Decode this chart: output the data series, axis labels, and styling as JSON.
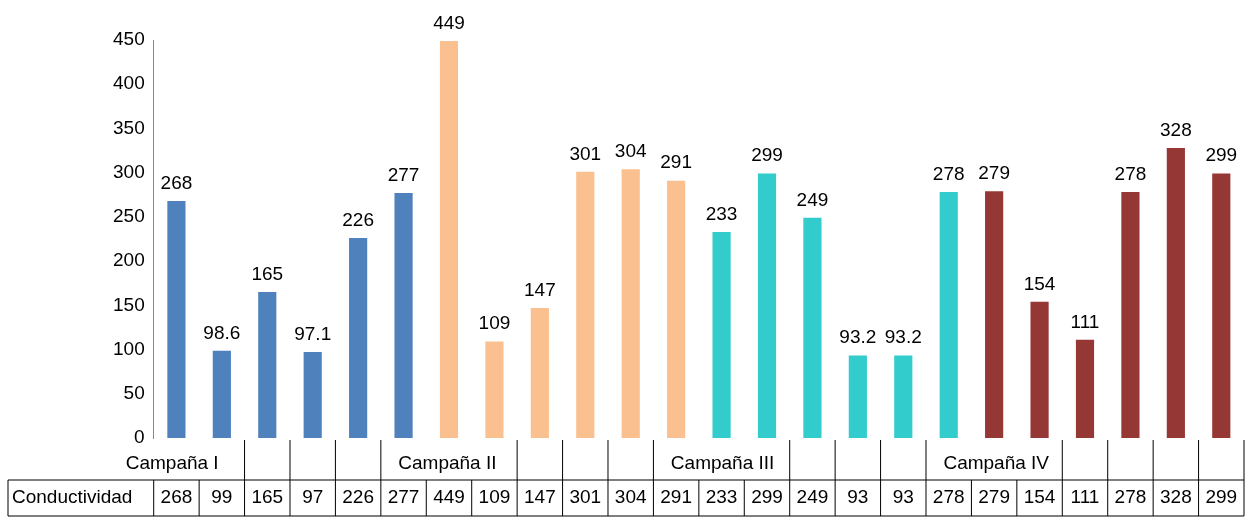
{
  "chart_data": {
    "type": "bar",
    "categories": [
      "Campaña I",
      null,
      null,
      null,
      null,
      null,
      "Campaña II",
      null,
      null,
      null,
      null,
      null,
      "Campaña III",
      null,
      null,
      null,
      null,
      null,
      "Campaña IV",
      null,
      null,
      null,
      null,
      null
    ],
    "series": [
      {
        "name": "Conductividad",
        "colors": [
          "#4f81bd",
          "#4f81bd",
          "#4f81bd",
          "#4f81bd",
          "#4f81bd",
          "#4f81bd",
          "#fac090",
          "#fac090",
          "#fac090",
          "#fac090",
          "#fac090",
          "#fac090",
          "#33cccc",
          "#33cccc",
          "#33cccc",
          "#33cccc",
          "#33cccc",
          "#33cccc",
          "#953735",
          "#953735",
          "#953735",
          "#953735",
          "#953735",
          "#953735"
        ],
        "values": [
          268,
          98.6,
          165,
          97.1,
          226,
          277,
          449,
          109,
          147,
          301,
          304,
          291,
          233,
          299,
          249,
          93.2,
          93.2,
          278,
          279,
          154,
          111,
          278,
          328,
          299
        ],
        "value_labels": [
          "268",
          "98.6",
          "165",
          "97.1",
          "226",
          "277",
          "449",
          "109",
          "147",
          "301",
          "304",
          "291",
          "233",
          "299",
          "249",
          "93.2",
          "93.2",
          "278",
          "279",
          "154",
          "111",
          "278",
          "328",
          "299"
        ]
      }
    ],
    "annotations": [
      "268",
      "99",
      "165",
      "97",
      "226",
      "277",
      "449",
      "109",
      "147",
      "301",
      "304",
      "291",
      "233",
      "299",
      "249",
      "93",
      "93",
      "278",
      "279",
      "154",
      "111",
      "278",
      "328",
      "299"
    ],
    "ylim": [
      0,
      450
    ],
    "yticks": [
      0,
      50,
      100,
      150,
      200,
      250,
      300,
      350,
      400,
      450
    ],
    "grid": false,
    "legend": false
  }
}
